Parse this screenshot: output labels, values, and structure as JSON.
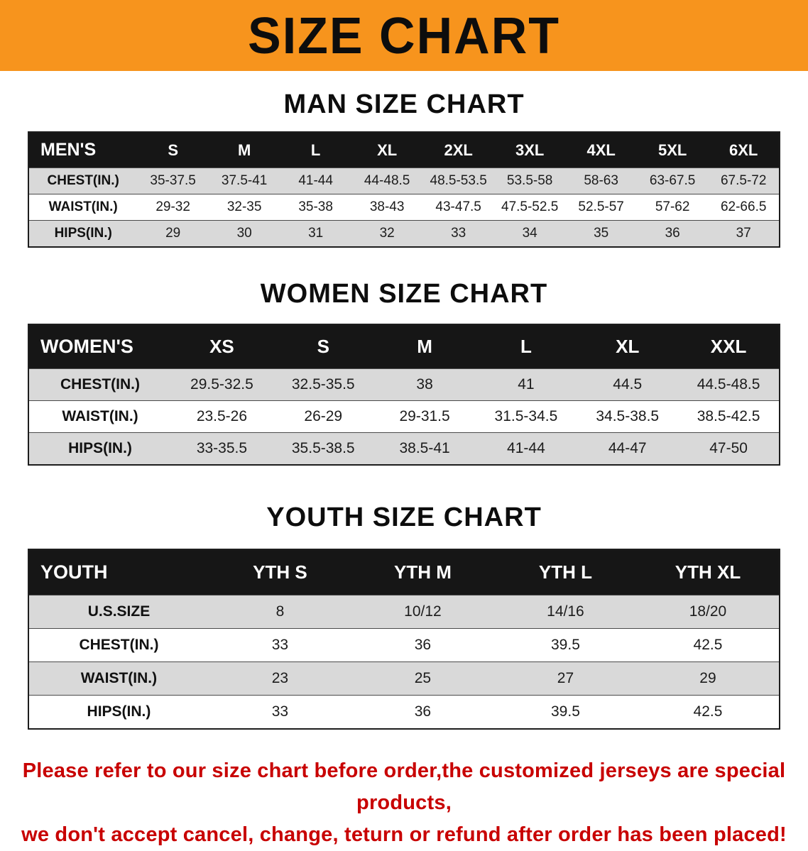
{
  "banner": {
    "title": "SIZE CHART"
  },
  "colors": {
    "banner-orange": "#f7941d",
    "header-black": "#161616",
    "row-gray": "#d9d9d9",
    "disclaimer-red": "#c80000"
  },
  "sections": [
    {
      "id": "men",
      "heading": "MAN SIZE CHART",
      "table": {
        "header": [
          "MEN'S",
          "S",
          "M",
          "L",
          "XL",
          "2XL",
          "3XL",
          "4XL",
          "5XL",
          "6XL"
        ],
        "rows": [
          [
            "CHEST(IN.)",
            "35-37.5",
            "37.5-41",
            "41-44",
            "44-48.5",
            "48.5-53.5",
            "53.5-58",
            "58-63",
            "63-67.5",
            "67.5-72"
          ],
          [
            "WAIST(IN.)",
            "29-32",
            "32-35",
            "35-38",
            "38-43",
            "43-47.5",
            "47.5-52.5",
            "52.5-57",
            "57-62",
            "62-66.5"
          ],
          [
            "HIPS(IN.)",
            "29",
            "30",
            "31",
            "32",
            "33",
            "34",
            "35",
            "36",
            "37"
          ]
        ]
      }
    },
    {
      "id": "women",
      "heading": "WOMEN SIZE CHART",
      "table": {
        "header": [
          "WOMEN'S",
          "XS",
          "S",
          "M",
          "L",
          "XL",
          "XXL"
        ],
        "rows": [
          [
            "CHEST(IN.)",
            "29.5-32.5",
            "32.5-35.5",
            "38",
            "41",
            "44.5",
            "44.5-48.5"
          ],
          [
            "WAIST(IN.)",
            "23.5-26",
            "26-29",
            "29-31.5",
            "31.5-34.5",
            "34.5-38.5",
            "38.5-42.5"
          ],
          [
            "HIPS(IN.)",
            "33-35.5",
            "35.5-38.5",
            "38.5-41",
            "41-44",
            "44-47",
            "47-50"
          ]
        ]
      }
    },
    {
      "id": "youth",
      "heading": "YOUTH SIZE CHART",
      "table": {
        "header": [
          "YOUTH",
          "YTH S",
          "YTH M",
          "YTH L",
          "YTH XL"
        ],
        "rows": [
          [
            "U.S.SIZE",
            "8",
            "10/12",
            "14/16",
            "18/20"
          ],
          [
            "CHEST(IN.)",
            "33",
            "36",
            "39.5",
            "42.5"
          ],
          [
            "WAIST(IN.)",
            "23",
            "25",
            "27",
            "29"
          ],
          [
            "HIPS(IN.)",
            "33",
            "36",
            "39.5",
            "42.5"
          ]
        ]
      }
    }
  ],
  "footer": {
    "line1": "Please refer to our size chart before order,the customized jerseys are special products,",
    "line2": "we don't accept cancel, change, teturn or refund after order has been placed!"
  }
}
